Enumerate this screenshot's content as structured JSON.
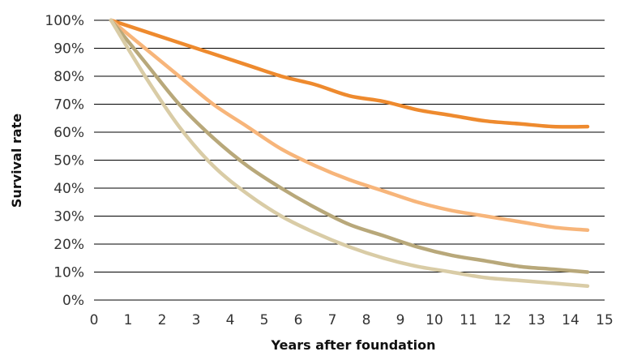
{
  "chart_data": {
    "type": "line",
    "title": "",
    "xlabel": "Years after foundation",
    "ylabel": "Survival rate",
    "xlim": [
      0,
      15
    ],
    "ylim": [
      0,
      1
    ],
    "x_ticks": [
      "0",
      "1",
      "2",
      "3",
      "4",
      "5",
      "6",
      "7",
      "8",
      "9",
      "10",
      "11",
      "12",
      "13",
      "14",
      "15"
    ],
    "y_ticks": [
      "0%",
      "10%",
      "20%",
      "30%",
      "40%",
      "50%",
      "60%",
      "70%",
      "80%",
      "90%",
      "100%"
    ],
    "grid": true,
    "legend": "none",
    "x": [
      0.5,
      1.5,
      2.5,
      3.5,
      4.5,
      5.5,
      6.5,
      7.5,
      8.5,
      9.5,
      10.5,
      11.5,
      12.5,
      13.5,
      14.5
    ],
    "series": [
      {
        "color": "#EE8A2E",
        "values": [
          1.0,
          0.96,
          0.92,
          0.88,
          0.84,
          0.8,
          0.77,
          0.73,
          0.71,
          0.68,
          0.66,
          0.64,
          0.63,
          0.62,
          0.62
        ]
      },
      {
        "color": "#F7B57A",
        "values": [
          1.0,
          0.9,
          0.8,
          0.7,
          0.62,
          0.54,
          0.48,
          0.43,
          0.39,
          0.35,
          0.32,
          0.3,
          0.28,
          0.26,
          0.25
        ]
      },
      {
        "color": "#B8A87A",
        "values": [
          1.0,
          0.85,
          0.7,
          0.58,
          0.48,
          0.4,
          0.33,
          0.27,
          0.23,
          0.19,
          0.16,
          0.14,
          0.12,
          0.11,
          0.1
        ]
      },
      {
        "color": "#D9CCA6",
        "values": [
          1.0,
          0.8,
          0.62,
          0.48,
          0.38,
          0.3,
          0.24,
          0.19,
          0.15,
          0.12,
          0.1,
          0.08,
          0.07,
          0.06,
          0.05
        ]
      }
    ]
  }
}
